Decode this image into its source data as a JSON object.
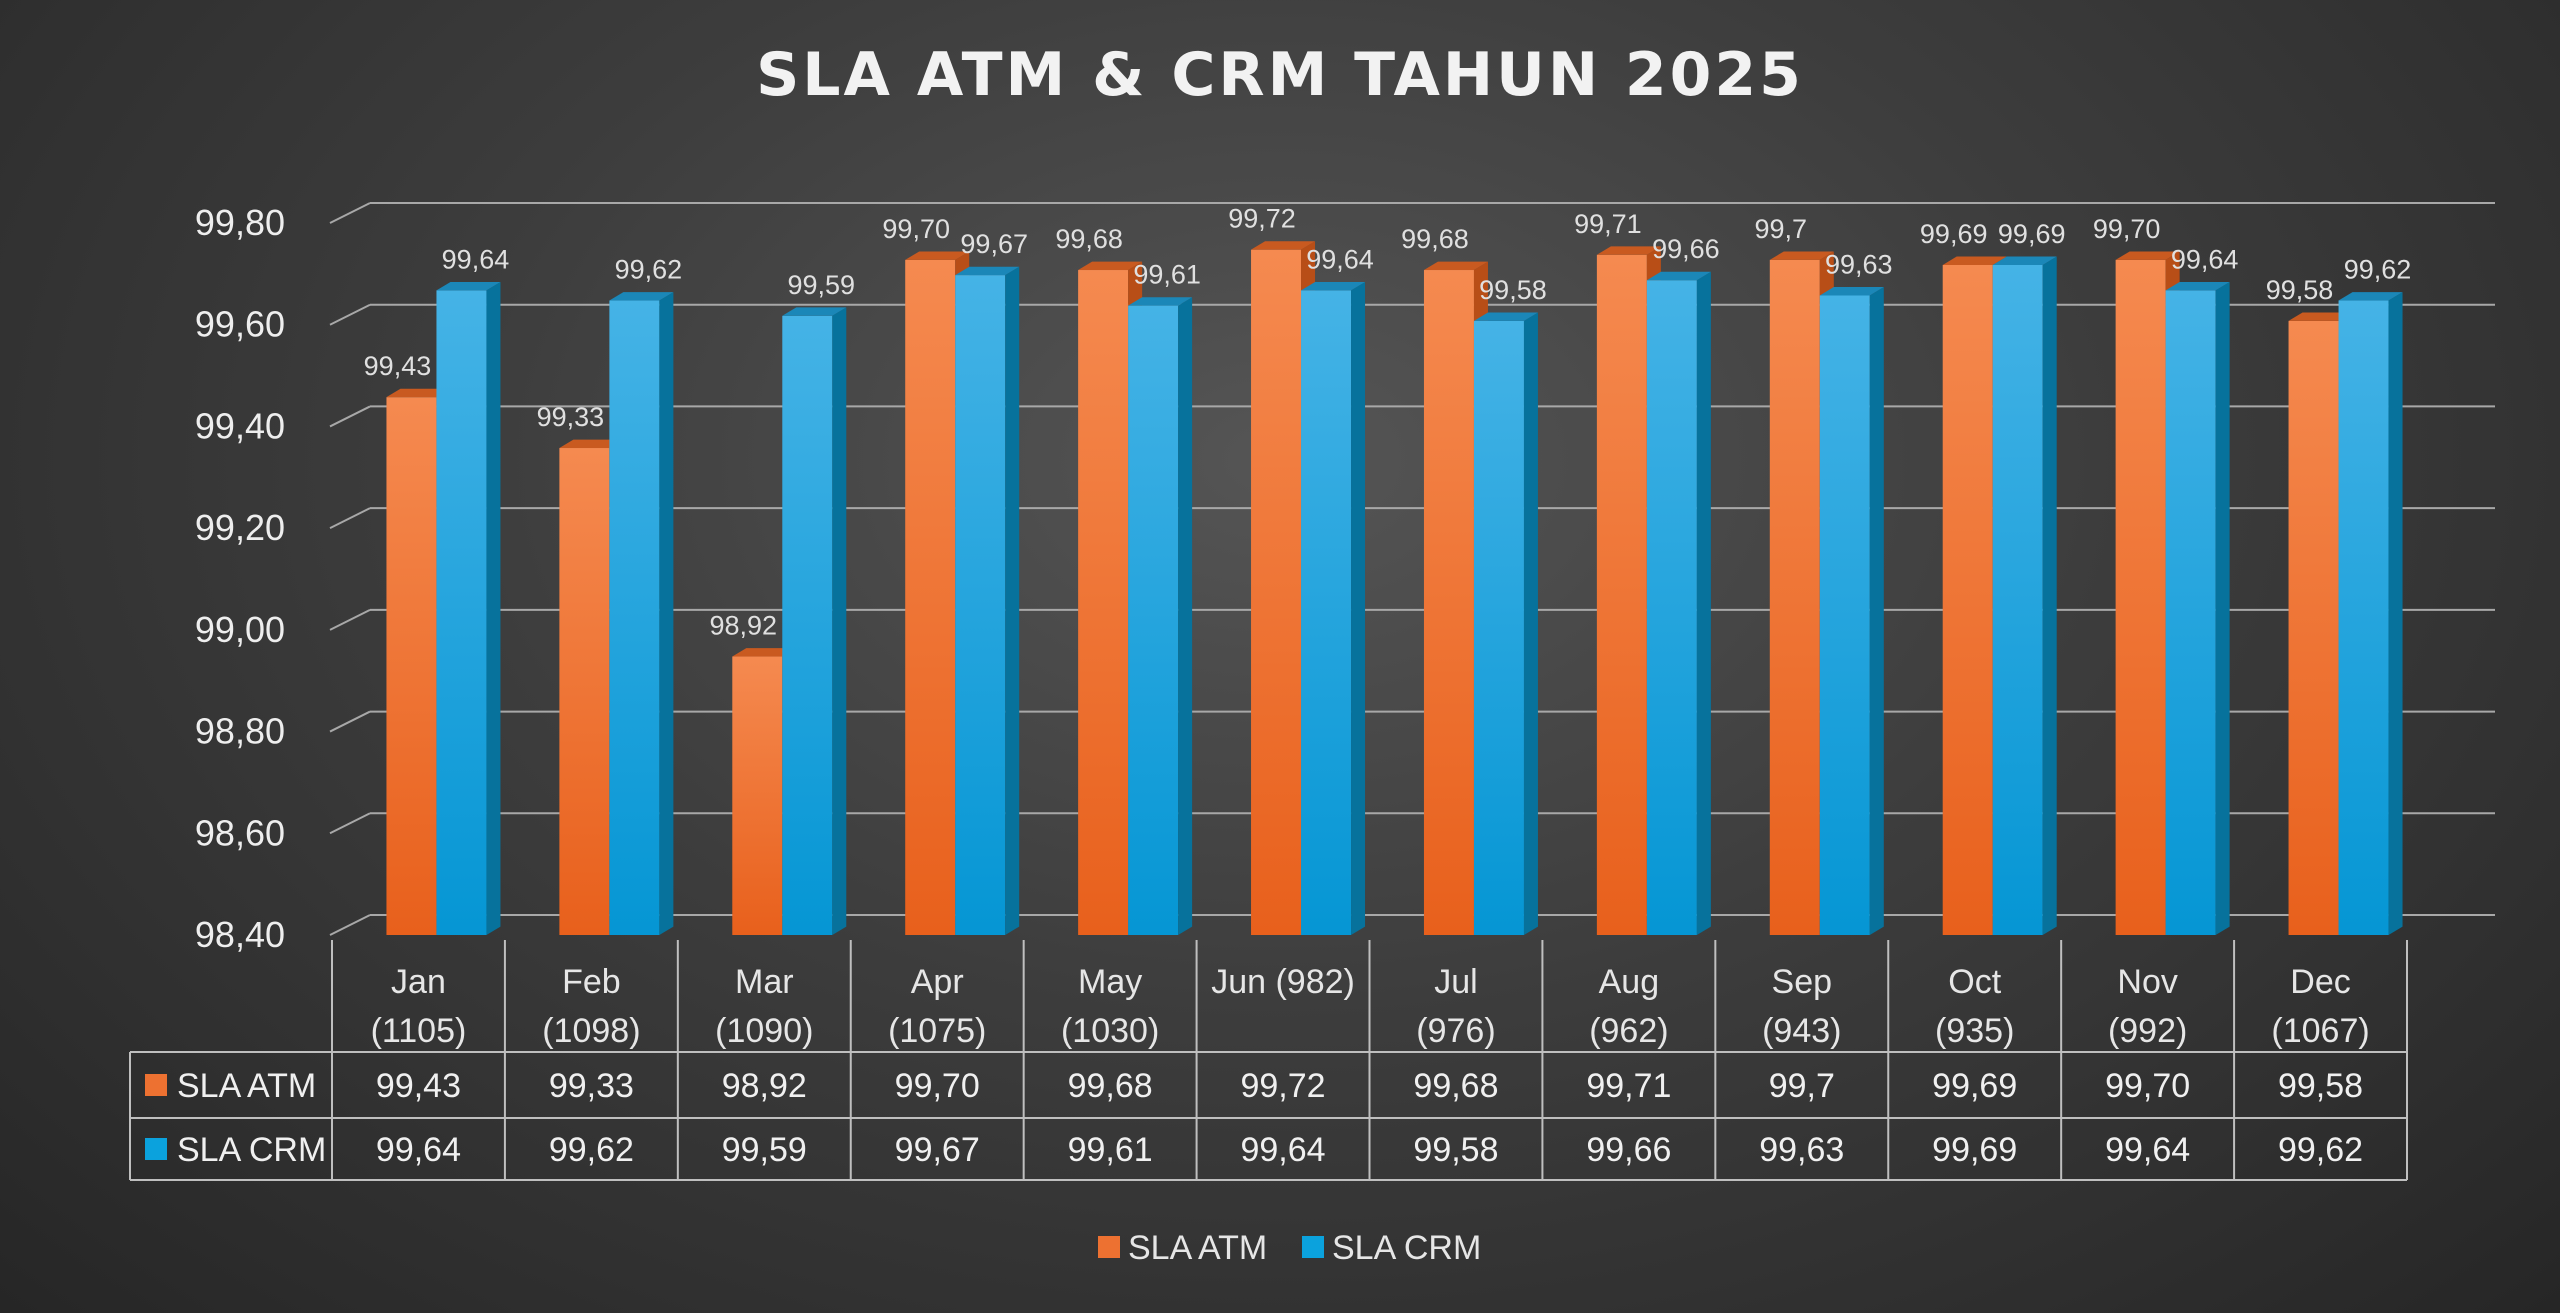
{
  "chart_data": {
    "type": "bar",
    "title": "SLA ATM & CRM TAHUN 2025",
    "categories": [
      "Jan (1105)",
      "Feb (1098)",
      "Mar (1090)",
      "Apr (1075)",
      "May (1030)",
      "Jun (982)",
      "Jul (976)",
      "Aug (962)",
      "Sep (943)",
      "Oct (935)",
      "Nov (992)",
      "Dec (1067)"
    ],
    "category_lines": [
      [
        "Jan",
        "(1105)"
      ],
      [
        "Feb",
        "(1098)"
      ],
      [
        "Mar",
        "(1090)"
      ],
      [
        "Apr",
        "(1075)"
      ],
      [
        "May",
        "(1030)"
      ],
      [
        "Jun (982)",
        ""
      ],
      [
        "Jul",
        "(976)"
      ],
      [
        "Aug",
        "(962)"
      ],
      [
        "Sep",
        "(943)"
      ],
      [
        "Oct",
        "(935)"
      ],
      [
        "Nov",
        "(992)"
      ],
      [
        "Dec",
        "(1067)"
      ]
    ],
    "series": [
      {
        "name": "SLA ATM",
        "color": "#ED7131",
        "values": [
          99.43,
          99.33,
          98.92,
          99.7,
          99.68,
          99.72,
          99.68,
          99.71,
          99.7,
          99.69,
          99.7,
          99.58
        ],
        "labels": [
          "99,43",
          "99,33",
          "98,92",
          "99,70",
          "99,68",
          "99,72",
          "99,68",
          "99,71",
          "99,7",
          "99,69",
          "99,70",
          "99,58"
        ]
      },
      {
        "name": "SLA CRM",
        "color": "#0BA2DD",
        "values": [
          99.64,
          99.62,
          99.59,
          99.67,
          99.61,
          99.64,
          99.58,
          99.66,
          99.63,
          99.69,
          99.64,
          99.62
        ],
        "labels": [
          "99,64",
          "99,62",
          "99,59",
          "99,67",
          "99,61",
          "99,64",
          "99,58",
          "99,66",
          "99,63",
          "99,69",
          "99,64",
          "99,62"
        ]
      }
    ],
    "ylim": [
      98.4,
      99.8
    ],
    "yticks": [
      98.4,
      98.6,
      98.8,
      99.0,
      99.2,
      99.4,
      99.6,
      99.8
    ],
    "ytick_labels": [
      "98,40",
      "98,60",
      "98,80",
      "99,00",
      "99,20",
      "99,40",
      "99,60",
      "99,80"
    ],
    "grid": true,
    "data_table": true,
    "legend": "bottom-center",
    "xlabel": "",
    "ylabel": ""
  }
}
